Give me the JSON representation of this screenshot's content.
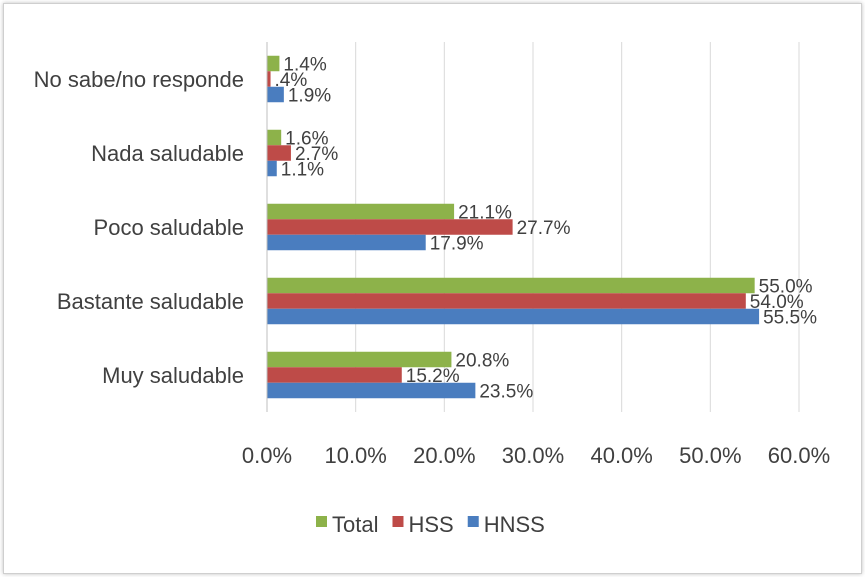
{
  "chart_data": {
    "type": "bar",
    "orientation": "horizontal",
    "categories": [
      "No sabe/no responde",
      "Nada saludable",
      "Poco saludable",
      "Bastante saludable",
      "Muy saludable"
    ],
    "series": [
      {
        "name": "Total",
        "color": "#8db24a",
        "values": [
          1.4,
          1.6,
          21.1,
          55.0,
          20.8
        ],
        "labels": [
          "1.4%",
          "1.6%",
          "21.1%",
          "55.0%",
          "20.8%"
        ]
      },
      {
        "name": "HSS",
        "color": "#be4b48",
        "values": [
          0.4,
          2.7,
          27.7,
          54.0,
          15.2
        ],
        "labels": [
          ".4%",
          "2.7%",
          "27.7%",
          "54.0%",
          "15.2%"
        ]
      },
      {
        "name": "HNSS",
        "color": "#4a7dbf",
        "values": [
          1.9,
          1.1,
          17.9,
          55.5,
          23.5
        ],
        "labels": [
          "1.9%",
          "1.1%",
          "17.9%",
          "55.5%",
          "23.5%"
        ]
      }
    ],
    "xlim": [
      0,
      60
    ],
    "xticks": [
      "0.0%",
      "10.0%",
      "20.0%",
      "30.0%",
      "40.0%",
      "50.0%",
      "60.0%"
    ],
    "grid": true,
    "legend_position": "bottom"
  }
}
